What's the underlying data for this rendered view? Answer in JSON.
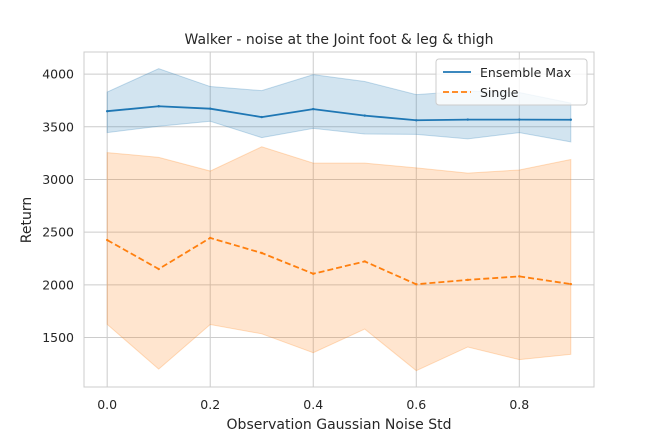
{
  "chart_data": {
    "type": "line",
    "title": "Walker - noise at the Joint foot & leg & thigh",
    "xlabel": "Observation Gaussian Noise Std",
    "ylabel": "Return",
    "xlim": [
      -0.045,
      0.945
    ],
    "ylim": [
      1030,
      4210
    ],
    "xticks": [
      0.0,
      0.2,
      0.4,
      0.6,
      0.8
    ],
    "xtick_labels": [
      "0.0",
      "0.2",
      "0.4",
      "0.6",
      "0.8"
    ],
    "yticks": [
      1500,
      2000,
      2500,
      3000,
      3500,
      4000
    ],
    "ytick_labels": [
      "1500",
      "2000",
      "2500",
      "3000",
      "3500",
      "4000"
    ],
    "grid": true,
    "legend_position": "top-right",
    "x": [
      0.0,
      0.1,
      0.2,
      0.3,
      0.4,
      0.5,
      0.6,
      0.7,
      0.8,
      0.9
    ],
    "series": [
      {
        "name": "Ensemble Max",
        "color": "#1f77b4",
        "style": "solid",
        "values": [
          3648,
          3695,
          3672,
          3592,
          3668,
          3606,
          3562,
          3568,
          3568,
          3567
        ],
        "lower": [
          3445,
          3505,
          3553,
          3397,
          3485,
          3432,
          3428,
          3385,
          3445,
          3357
        ],
        "upper": [
          3830,
          4052,
          3882,
          3843,
          3995,
          3930,
          3805,
          3840,
          3825,
          3725
        ]
      },
      {
        "name": "Single",
        "color": "#ff7f0e",
        "style": "dashed",
        "values": [
          2425,
          2150,
          2445,
          2302,
          2105,
          2222,
          2005,
          2047,
          2080,
          2007
        ],
        "lower": [
          1625,
          1200,
          1623,
          1535,
          1355,
          1580,
          1185,
          1410,
          1290,
          1340
        ],
        "upper": [
          3255,
          3210,
          3080,
          3310,
          3155,
          3155,
          3110,
          3060,
          3090,
          3190
        ]
      }
    ]
  }
}
